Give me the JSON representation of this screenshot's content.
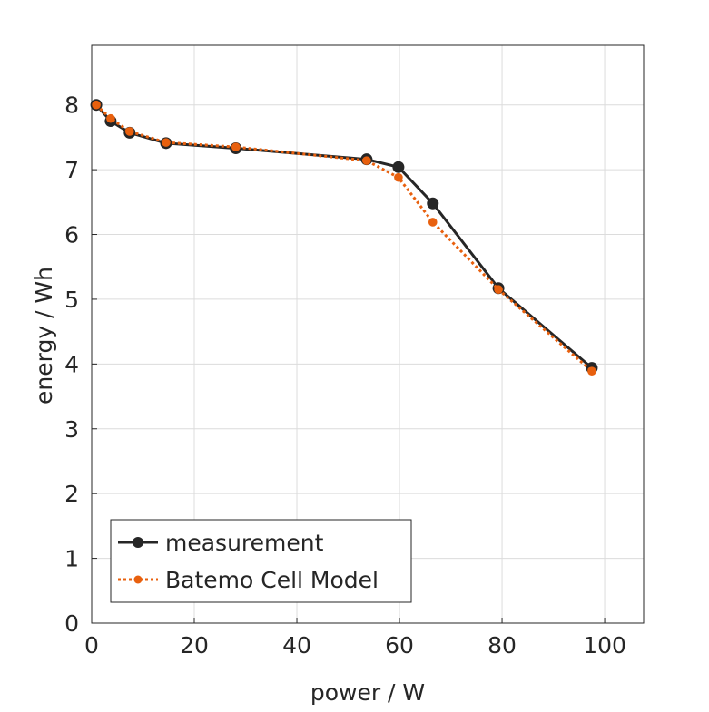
{
  "chart_data": {
    "type": "line",
    "xlabel": "power / W",
    "ylabel": "energy / Wh",
    "xlim": [
      0,
      107.6
    ],
    "ylim": [
      0,
      8.92
    ],
    "xticks": [
      0,
      20,
      40,
      60,
      80,
      100
    ],
    "yticks": [
      0,
      1,
      2,
      3,
      4,
      5,
      6,
      7,
      8
    ],
    "grid": true,
    "legend_position": "bottom-left",
    "series": [
      {
        "name": "measurement",
        "color": "#262626",
        "line_style": "solid",
        "x": [
          0.9,
          3.7,
          7.4,
          14.5,
          28.1,
          53.6,
          59.8,
          66.5,
          79.3,
          97.5
        ],
        "y": [
          8.0,
          7.75,
          7.57,
          7.41,
          7.33,
          7.16,
          7.04,
          6.48,
          5.17,
          3.94
        ]
      },
      {
        "name": "Batemo Cell Model",
        "color": "#e8600e",
        "line_style": "dotted",
        "x": [
          0.9,
          3.7,
          7.4,
          14.5,
          28.1,
          53.6,
          59.8,
          66.5,
          79.3,
          97.5
        ],
        "y": [
          8.0,
          7.79,
          7.59,
          7.42,
          7.35,
          7.14,
          6.88,
          6.19,
          5.15,
          3.89
        ]
      }
    ]
  }
}
